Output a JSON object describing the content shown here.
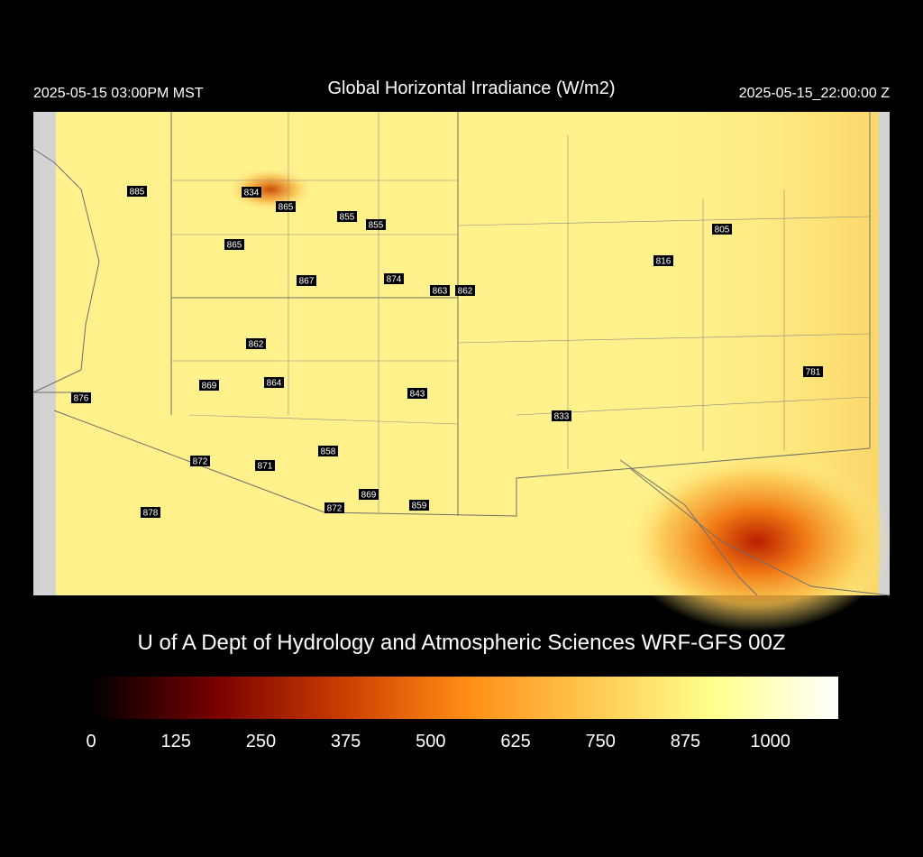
{
  "map": {
    "title": "Global Horizontal Irradiance (W/m2)",
    "time_local": "2025-05-15 03:00PM MST",
    "time_utc": "2025-05-15_22:00:00 Z",
    "stations": [
      885,
      834,
      865,
      855,
      855,
      865,
      867,
      874,
      863,
      862,
      816,
      805,
      862,
      869,
      864,
      843,
      876,
      833,
      781,
      872,
      871,
      858,
      869,
      872,
      859,
      878
    ],
    "credit": "U of A Dept of Hydrology and Atmospheric Sciences WRF-GFS 00Z",
    "colorbar": {
      "lim": [
        0,
        1100
      ],
      "ticks": [
        0,
        125,
        250,
        375,
        500,
        625,
        750,
        875,
        1000
      ],
      "colors": [
        "#000000",
        "#780000",
        "#c83c00",
        "#ff8c14",
        "#ffc850",
        "#ffff8c",
        "#ffffff"
      ]
    }
  }
}
